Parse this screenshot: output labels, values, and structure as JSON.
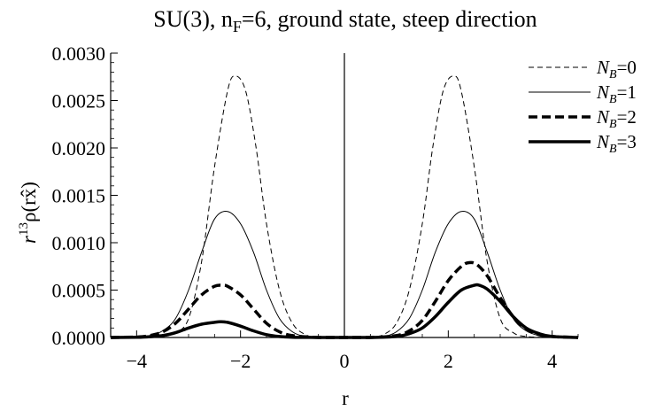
{
  "title_parts": {
    "pre": "SU(3), n",
    "sub": "F",
    "post": "=6, ground state, steep direction"
  },
  "ylabel_parts": {
    "r": "r",
    "exp": "13",
    "rest": "ρ(r",
    "xhat": "x̂",
    "close": ")"
  },
  "chart_data": {
    "type": "line",
    "title": "SU(3), nF=6, ground state, steep direction",
    "xlabel": "r",
    "ylabel": "r^13 ρ(r x̂)",
    "xlim": [
      -4.5,
      4.5
    ],
    "ylim": [
      0,
      0.003
    ],
    "xticks": [
      -4,
      -2,
      0,
      2,
      4
    ],
    "xtick_labels": [
      "−4",
      "−2",
      "0",
      "2",
      "4"
    ],
    "yticks": [
      0,
      0.0005,
      0.001,
      0.0015,
      0.002,
      0.0025,
      0.003
    ],
    "ytick_labels": [
      "0.0000",
      "0.0005",
      "0.0010",
      "0.0015",
      "0.0020",
      "0.0025",
      "0.0030"
    ],
    "legend_position": "right",
    "series": [
      {
        "name": "NB=0",
        "label_main": "N",
        "label_sub": "B",
        "label_val": "=0",
        "style": "thin-dashed",
        "x": [
          -4.5,
          -4.0,
          -3.5,
          -3.25,
          -3.0,
          -2.75,
          -2.5,
          -2.25,
          -2.1,
          -1.9,
          -1.7,
          -1.5,
          -1.25,
          -1.0,
          -0.75,
          -0.5,
          0,
          0.5,
          0.75,
          1.0,
          1.25,
          1.5,
          1.7,
          1.9,
          2.1,
          2.25,
          2.5,
          2.75,
          3.0,
          3.25,
          3.5,
          4.0,
          4.5
        ],
        "y": [
          0,
          0,
          1e-05,
          5e-05,
          0.0002,
          0.0008,
          0.0018,
          0.0026,
          0.00276,
          0.0026,
          0.002,
          0.0012,
          0.0005,
          0.00015,
          3e-05,
          0,
          0,
          0,
          3e-05,
          0.00015,
          0.0005,
          0.0012,
          0.002,
          0.0026,
          0.00276,
          0.0026,
          0.0018,
          0.0008,
          0.0002,
          5e-05,
          1e-05,
          0,
          0
        ]
      },
      {
        "name": "NB=1",
        "label_main": "N",
        "label_sub": "B",
        "label_val": "=1",
        "style": "thin-solid",
        "x": [
          -4.5,
          -4.0,
          -3.75,
          -3.5,
          -3.25,
          -3.0,
          -2.75,
          -2.5,
          -2.25,
          -2.0,
          -1.75,
          -1.5,
          -1.25,
          -1.0,
          -0.75,
          -0.5,
          0,
          0.5,
          0.75,
          1.0,
          1.25,
          1.5,
          1.75,
          2.0,
          2.25,
          2.5,
          2.75,
          3.0,
          3.25,
          3.5,
          3.75,
          4.0,
          4.5
        ],
        "y": [
          0,
          5e-06,
          2e-05,
          7e-05,
          0.0002,
          0.0005,
          0.0009,
          0.00125,
          0.00133,
          0.0012,
          0.0009,
          0.0005,
          0.0002,
          6e-05,
          1e-05,
          0,
          0,
          0,
          1e-05,
          6e-05,
          0.0002,
          0.0005,
          0.0009,
          0.0012,
          0.00133,
          0.00125,
          0.0009,
          0.0005,
          0.0002,
          7e-05,
          2e-05,
          5e-06,
          0
        ]
      },
      {
        "name": "NB=2",
        "label_main": "N",
        "label_sub": "B",
        "label_val": "=2",
        "style": "thick-dashed",
        "x": [
          -4.5,
          -4.0,
          -3.75,
          -3.5,
          -3.25,
          -3.0,
          -2.75,
          -2.5,
          -2.35,
          -2.25,
          -2.0,
          -1.75,
          -1.5,
          -1.25,
          -1.0,
          -0.5,
          0,
          0.5,
          1.0,
          1.25,
          1.5,
          1.75,
          2.0,
          2.25,
          2.4,
          2.55,
          2.75,
          3.0,
          3.25,
          3.5,
          3.75,
          4.0,
          4.5
        ],
        "y": [
          0,
          5e-06,
          2e-05,
          6e-05,
          0.00015,
          0.0003,
          0.00045,
          0.00054,
          0.00055,
          0.00054,
          0.00045,
          0.0003,
          0.00015,
          6e-05,
          2e-05,
          0,
          0,
          0,
          2e-05,
          7e-05,
          0.00018,
          0.00038,
          0.0006,
          0.00075,
          0.00079,
          0.00077,
          0.00065,
          0.00042,
          0.00022,
          9e-05,
          3e-05,
          1e-05,
          0
        ]
      },
      {
        "name": "NB=3",
        "label_main": "N",
        "label_sub": "B",
        "label_val": "=3",
        "style": "thick-solid",
        "x": [
          -4.5,
          -4.0,
          -3.75,
          -3.5,
          -3.25,
          -3.0,
          -2.75,
          -2.5,
          -2.4,
          -2.25,
          -2.0,
          -1.75,
          -1.5,
          -1.25,
          -1.0,
          -0.5,
          0,
          0.5,
          1.0,
          1.25,
          1.5,
          1.75,
          2.0,
          2.25,
          2.5,
          2.6,
          2.75,
          3.0,
          3.25,
          3.5,
          3.75,
          4.0,
          4.5
        ],
        "y": [
          0,
          2e-06,
          8e-06,
          2e-05,
          5e-05,
          0.0001,
          0.00014,
          0.00016,
          0.000165,
          0.00016,
          0.00012,
          7e-05,
          3e-05,
          1e-05,
          3e-06,
          0,
          0,
          0,
          1e-05,
          4e-05,
          0.0001,
          0.00022,
          0.00037,
          0.0005,
          0.00055,
          0.00055,
          0.00051,
          0.00038,
          0.00022,
          0.0001,
          4e-05,
          1e-05,
          0
        ]
      }
    ]
  }
}
